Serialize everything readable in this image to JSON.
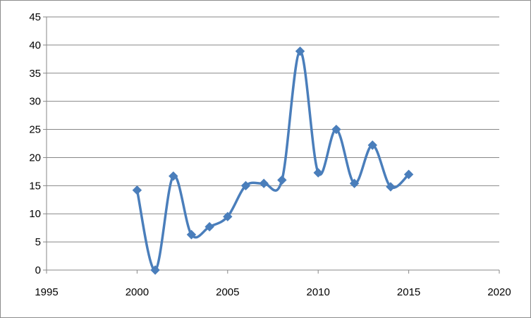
{
  "chart_data": {
    "type": "scatter",
    "title": "",
    "xlabel": "",
    "ylabel": "",
    "xlim": [
      1995,
      2020
    ],
    "ylim": [
      0,
      45
    ],
    "x_ticks": [
      "1995",
      "2000",
      "2005",
      "2010",
      "2015",
      "2020"
    ],
    "y_ticks": [
      "0",
      "5",
      "10",
      "15",
      "20",
      "25",
      "30",
      "35",
      "40",
      "45"
    ],
    "grid": "horizontal",
    "legend": "none",
    "smooth": true,
    "series": [
      {
        "color": "#4a7ebb",
        "marker": "diamond",
        "x": [
          2000,
          2001,
          2002,
          2003,
          2004,
          2005,
          2006,
          2007,
          2008,
          2009,
          2010,
          2011,
          2012,
          2013,
          2014,
          2015
        ],
        "y": [
          14.2,
          0,
          16.7,
          6.3,
          7.7,
          9.5,
          15.0,
          15.4,
          16.0,
          38.9,
          17.3,
          25.0,
          15.4,
          22.2,
          14.8,
          17.0
        ]
      }
    ]
  }
}
